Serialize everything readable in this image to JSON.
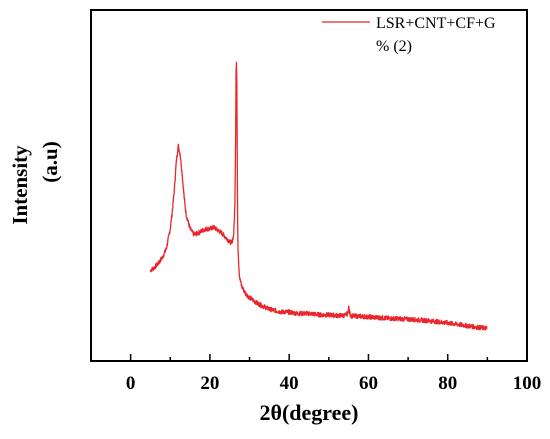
{
  "chart_data": {
    "type": "line",
    "xlabel": "2θ(degree)",
    "ylabel": "Intensity",
    "ylabel_unit": "(a.u)",
    "xlim": [
      -10,
      100
    ],
    "ylim": [
      0,
      100
    ],
    "x_ticks": [
      0,
      20,
      40,
      60,
      80,
      100
    ],
    "y_tick_labels_shown": false,
    "grid": false,
    "legend_position": "top-right",
    "color": "#e8262c",
    "series": [
      {
        "name": "LSR+CNT+CF+G % (2)",
        "legend_line1": "LSR+CNT+CF+G",
        "legend_line2": "% (2)",
        "x": [
          5,
          5.5,
          6,
          7,
          8,
          9,
          10,
          10.5,
          11,
          11.5,
          12,
          12.5,
          13,
          13.5,
          14,
          15,
          16,
          17,
          18,
          19,
          20,
          21,
          22,
          23,
          24,
          25,
          25.5,
          26,
          26.3,
          26.5,
          26.6,
          26.7,
          26.8,
          26.9,
          27.0,
          27.1,
          27.3,
          27.5,
          28,
          29,
          30,
          32,
          35,
          38,
          40,
          42,
          45,
          48,
          50,
          52,
          54,
          54.8,
          55,
          55.2,
          55.5,
          56,
          58,
          60,
          65,
          70,
          75,
          80,
          85,
          88,
          90
        ],
        "y": [
          22.5,
          23,
          23.5,
          25,
          27,
          30,
          37,
          43,
          50,
          60,
          66,
          63,
          56,
          48,
          42,
          37,
          35,
          35.5,
          36.3,
          37,
          37,
          37.5,
          36.5,
          35.5,
          34,
          32.5,
          32,
          35,
          45,
          70,
          92,
          95,
          88,
          60,
          40,
          30,
          24,
          20,
          17,
          14.5,
          13,
          11,
          9,
          8,
          8,
          7.5,
          7.5,
          7,
          7,
          6.8,
          6.8,
          7.5,
          10,
          8,
          6.8,
          6.6,
          6.5,
          6.3,
          5.8,
          5.5,
          5,
          4.2,
          3.2,
          2.6,
          2.3
        ]
      }
    ]
  }
}
